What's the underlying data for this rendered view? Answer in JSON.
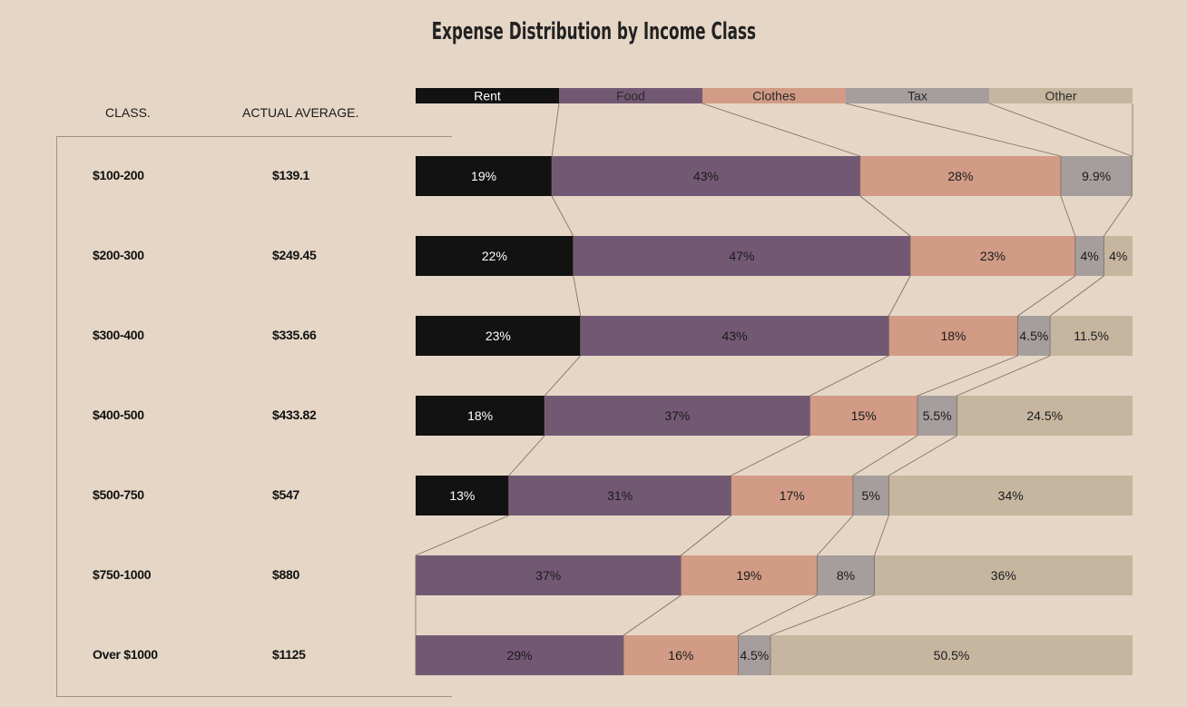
{
  "chart_data": {
    "type": "bar",
    "title": "Expense Distribution by Income Class",
    "stacked": true,
    "orientation": "horizontal",
    "legend_position": "top",
    "table_headers": {
      "class": "CLASS.",
      "average": "ACTUAL AVERAGE."
    },
    "categories": [
      "$100-200",
      "$200-300",
      "$300-400",
      "$400-500",
      "$500-750",
      "$750-1000",
      "Over $1000"
    ],
    "actual_average": [
      "$139.1",
      "$249.45",
      "$335.66",
      "$433.82",
      "$547",
      "$880",
      "$1125"
    ],
    "series": [
      {
        "name": "Rent",
        "color": "#121212",
        "label_color": "#ffffff",
        "values": [
          19,
          22,
          23,
          18,
          13,
          0,
          0
        ],
        "labels": [
          "19%",
          "22%",
          "23%",
          "18%",
          "13%",
          "",
          ""
        ]
      },
      {
        "name": "Food",
        "color": "#735874",
        "label_color": "#1a1a1a",
        "values": [
          43,
          47,
          43,
          37,
          31,
          37,
          29
        ],
        "labels": [
          "43%",
          "47%",
          "43%",
          "37%",
          "31%",
          "37%",
          "29%"
        ]
      },
      {
        "name": "Clothes",
        "color": "#d19b85",
        "label_color": "#1a1a1a",
        "values": [
          28,
          23,
          18,
          15,
          17,
          19,
          16
        ],
        "labels": [
          "28%",
          "23%",
          "18%",
          "15%",
          "17%",
          "19%",
          "16%"
        ]
      },
      {
        "name": "Tax",
        "color": "#a59e9c",
        "label_color": "#1a1a1a",
        "values": [
          9.9,
          4,
          4.5,
          5.5,
          5,
          8,
          4.5
        ],
        "labels": [
          "9.9%",
          "4%",
          "4.5%",
          "5.5%",
          "5%",
          "8%",
          "4.5%"
        ]
      },
      {
        "name": "Other",
        "color": "#c6b6a0",
        "label_color": "#1a1a1a",
        "values": [
          0.1,
          4,
          11.5,
          24.5,
          34,
          36,
          50.5
        ],
        "labels": [
          "",
          "4%",
          "11.5%",
          "24.5%",
          "34%",
          "36%",
          "50.5%"
        ]
      }
    ],
    "xlim": [
      0,
      100
    ]
  }
}
